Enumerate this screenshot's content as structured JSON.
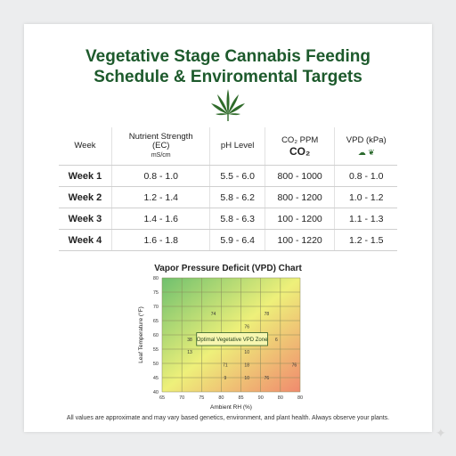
{
  "title": {
    "line1": "Vegetative Stage Cannabis Feeding",
    "line2": "Schedule & Enviromental Targets"
  },
  "icons": {
    "title_icon": "cannabis-leaf-icon",
    "vpd_icons": [
      "co2-cloud-icon",
      "leaf-icon"
    ]
  },
  "colors": {
    "title": "#1d5a2c",
    "leaf": "#2f6b2a"
  },
  "table": {
    "headers": {
      "week": "Week",
      "ec_line1": "Nutrient Strength",
      "ec_line2": "(EC)",
      "ec_unit": "mS/cm",
      "ph": "pH Level",
      "co2": "CO₂ PPM",
      "co2_big": "CO₂",
      "vpd": "VPD (kPa)"
    },
    "rows": [
      {
        "week": "Week 1",
        "ec": "0.8 - 1.0",
        "ph": "5.5 - 6.0",
        "co2": "800 - 1000",
        "vpd": "0.8 - 1.0"
      },
      {
        "week": "Week 2",
        "ec": "1.2 - 1.4",
        "ph": "5.8 - 6.2",
        "co2": "800 - 1200",
        "vpd": "1.0 - 1.2"
      },
      {
        "week": "Week 3",
        "ec": "1.4 - 1.6",
        "ph": "5.8 - 6.3",
        "co2": "100 - 1200",
        "vpd": "1.1 - 1.3"
      },
      {
        "week": "Week 4",
        "ec": "1.6 - 1.8",
        "ph": "5.9 - 6.4",
        "co2": "100 - 1220",
        "vpd": "1.2 - 1.5"
      }
    ]
  },
  "chart_data": {
    "type": "heatmap",
    "title": "Vapor Pressure Deficit (VPD) Chart",
    "xlabel": "Ambient RH (%)",
    "ylabel": "Leaf Temperature (°F)",
    "x_ticks": [
      "65",
      "70",
      "75",
      "80",
      "85",
      "90",
      "80",
      "80"
    ],
    "y_ticks": [
      "80",
      "75",
      "70",
      "65",
      "60",
      "55",
      "50",
      "45",
      "40"
    ],
    "zone_label": "Optimal Vegetative VPD Zone",
    "grid": true,
    "colors": {
      "top_left": "#7cc57a",
      "center": "#eef07a",
      "bottom_right": "#f08a6e"
    },
    "cell_labels": [
      {
        "text": "74",
        "col": 2.6,
        "row": 2.5
      },
      {
        "text": "78",
        "col": 5.3,
        "row": 2.5
      },
      {
        "text": "76",
        "col": 4.3,
        "row": 3.4
      },
      {
        "text": "38",
        "col": 1.4,
        "row": 4.3
      },
      {
        "text": "6",
        "col": 5.8,
        "row": 4.3
      },
      {
        "text": "13",
        "col": 1.4,
        "row": 5.2
      },
      {
        "text": "10",
        "col": 4.3,
        "row": 5.2
      },
      {
        "text": "71",
        "col": 3.2,
        "row": 6.1
      },
      {
        "text": "18",
        "col": 4.3,
        "row": 6.1
      },
      {
        "text": "76",
        "col": 6.7,
        "row": 6.1
      },
      {
        "text": "9",
        "col": 3.2,
        "row": 7.0
      },
      {
        "text": "10",
        "col": 4.3,
        "row": 7.0
      },
      {
        "text": "76",
        "col": 5.3,
        "row": 7.0
      }
    ]
  },
  "footer": "All values are approximate and may vary based genetics, environment, and plant health. Always observe your plants."
}
